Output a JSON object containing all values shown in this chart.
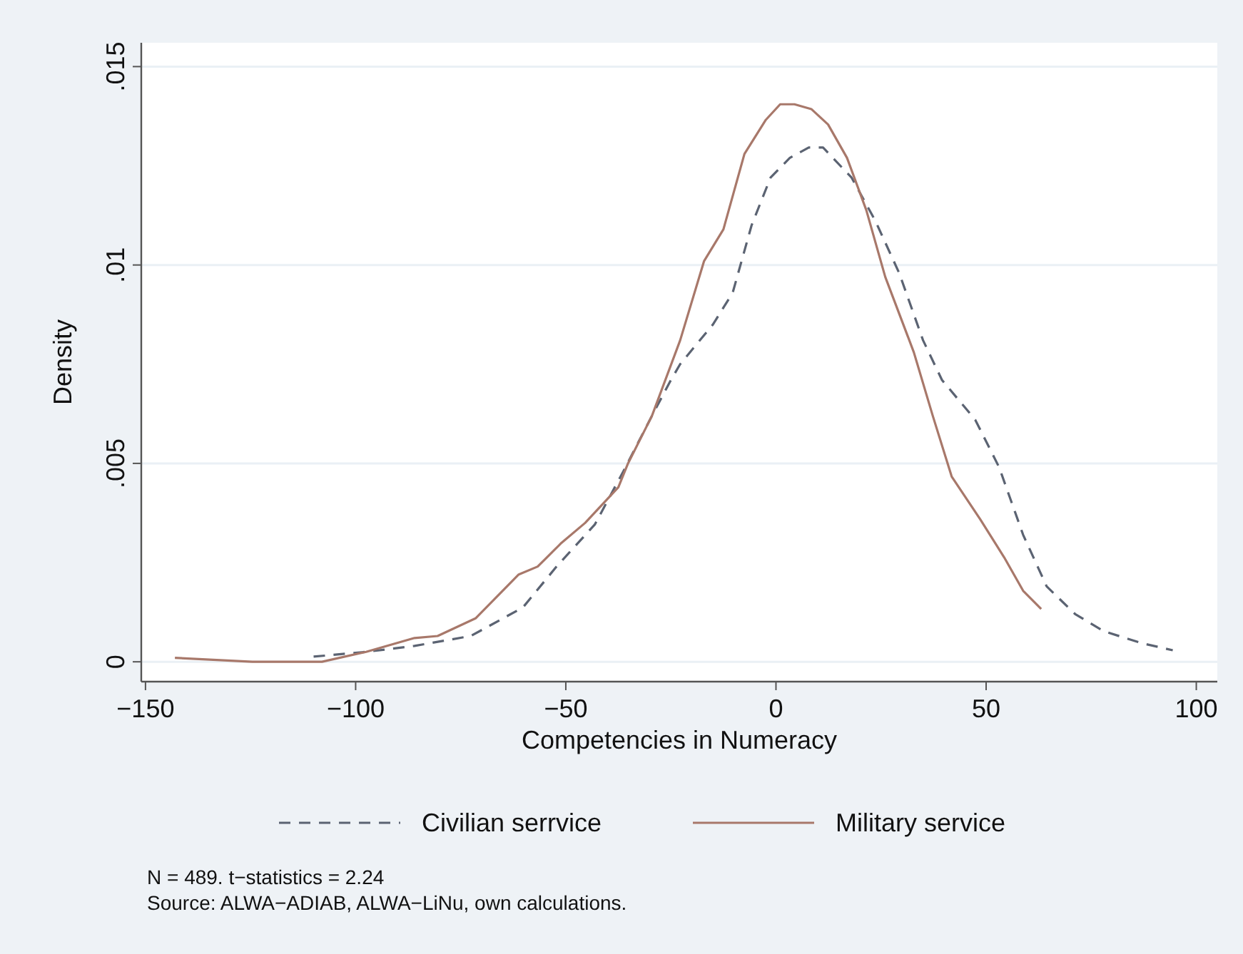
{
  "chart_data": {
    "type": "line",
    "xlabel": "Competencies in Numeracy",
    "ylabel": "Density",
    "xlim": [
      -151,
      105
    ],
    "xticks": [
      {
        "value": -150,
        "label": "−150"
      },
      {
        "value": -100,
        "label": "−100"
      },
      {
        "value": -50,
        "label": "−50"
      },
      0,
      50,
      100
    ],
    "ylim": [
      -0.0005,
      0.0156
    ],
    "yticks": [
      0,
      {
        "value": 0.005,
        "label": ".005"
      },
      {
        "value": 0.01,
        "label": ".01"
      },
      {
        "value": 0.015,
        "label": ".015"
      }
    ],
    "grid": "y",
    "legend": "bottom",
    "series": [
      {
        "name": "Civilian serrvice",
        "color": "#5b6372",
        "line_style": "dashed",
        "x": [
          -110,
          -97.5,
          -86,
          -72.6,
          -60.2,
          -52.2,
          -43.1,
          -36.3,
          -29.5,
          -25,
          -22.8,
          -15,
          -10.3,
          -5.8,
          -1.3,
          3.3,
          7.8,
          11.2,
          18,
          23.7,
          29.3,
          35,
          39.5,
          47.4,
          53.1,
          58.8,
          64.4,
          71.2,
          78,
          87,
          94.4
        ],
        "values": [
          0.00013,
          0.00025,
          0.0004,
          0.00065,
          0.00137,
          0.0024,
          0.00346,
          0.0048,
          0.0062,
          0.0071,
          0.0075,
          0.0085,
          0.0093,
          0.011,
          0.0122,
          0.0127,
          0.01296,
          0.01296,
          0.0122,
          0.0111,
          0.0098,
          0.0081,
          0.0071,
          0.0061,
          0.0049,
          0.0032,
          0.0019,
          0.0012,
          0.00077,
          0.00047,
          0.00029
        ]
      },
      {
        "name": "Military service",
        "color": "#a8786a",
        "line_style": "solid",
        "x": [
          -143,
          -124.6,
          -108,
          -97.5,
          -86,
          -80.5,
          -71.4,
          -61.2,
          -56.7,
          -51,
          -45.4,
          -37.5,
          -35.2,
          -29.5,
          -22.8,
          -17.1,
          -12.5,
          -7.5,
          -2.4,
          1,
          4.4,
          8.4,
          12.4,
          16.9,
          21.5,
          26,
          32.8,
          37.3,
          41.8,
          48.6,
          54.3,
          58.8,
          63.1
        ],
        "values": [
          0.0001,
          0,
          0,
          0.00025,
          0.0006,
          0.00065,
          0.0011,
          0.0022,
          0.0024,
          0.003,
          0.0035,
          0.0044,
          0.005,
          0.0062,
          0.0081,
          0.0101,
          0.0109,
          0.0128,
          0.01366,
          0.01405,
          0.01405,
          0.01393,
          0.01354,
          0.0127,
          0.01138,
          0.0097,
          0.0078,
          0.0062,
          0.00467,
          0.00359,
          0.00263,
          0.00179,
          0.00133
        ]
      }
    ],
    "annotations": [
      "N = 489. t−statistics = 2.24",
      "Source: ALWA−ADIAB, ALWA−LiNu, own calculations."
    ]
  }
}
